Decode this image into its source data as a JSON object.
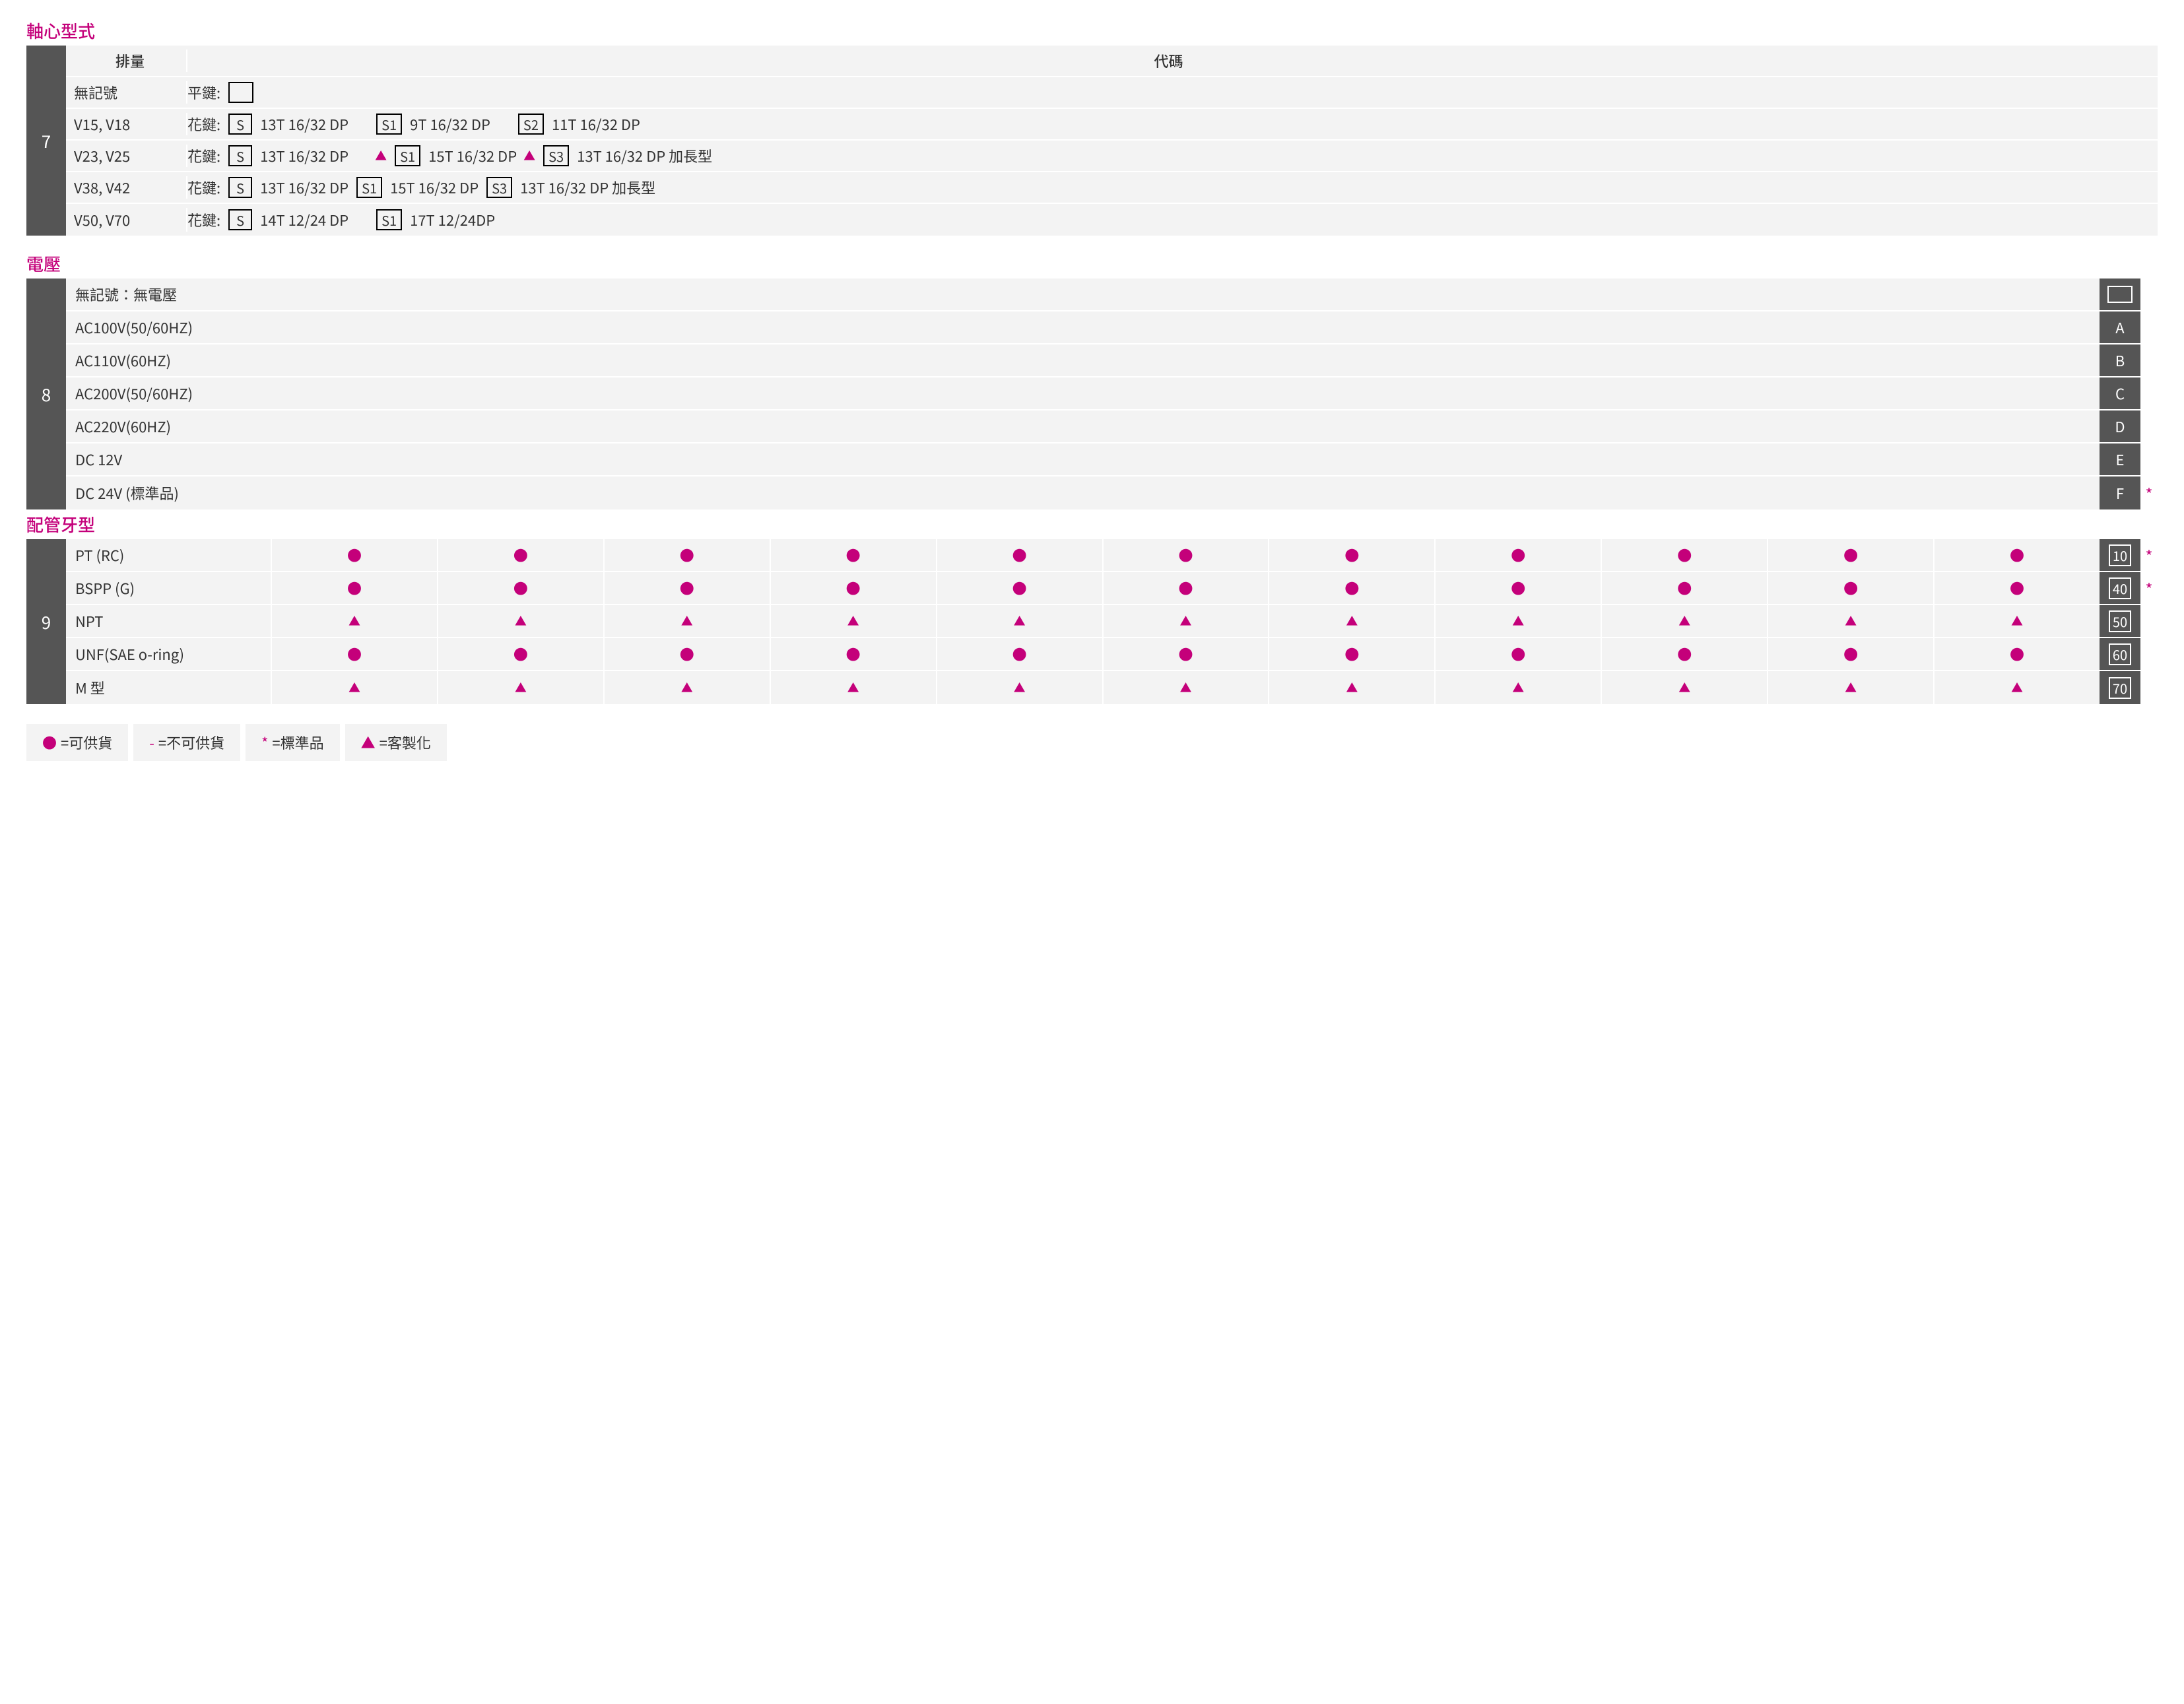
{
  "section7": {
    "title": "軸心型式",
    "num": "7",
    "header_left": "排量",
    "header_right": "代碼",
    "rows": [
      {
        "left": "無記號",
        "prefix": "平鍵:",
        "items": [
          {
            "type": "box",
            "text": ""
          }
        ]
      },
      {
        "left": "V15, V18",
        "prefix": "花鍵:",
        "items": [
          {
            "type": "box",
            "text": "S"
          },
          {
            "type": "text",
            "text": "13T 16/32 DP"
          },
          {
            "type": "gap"
          },
          {
            "type": "box",
            "text": "S1"
          },
          {
            "type": "text",
            "text": "9T 16/32 DP"
          },
          {
            "type": "gap"
          },
          {
            "type": "box",
            "text": "S2"
          },
          {
            "type": "text",
            "text": "11T 16/32 DP"
          }
        ]
      },
      {
        "left": "V23, V25",
        "prefix": "花鍵:",
        "items": [
          {
            "type": "box",
            "text": "S"
          },
          {
            "type": "text",
            "text": "13T 16/32 DP"
          },
          {
            "type": "gap"
          },
          {
            "type": "tri"
          },
          {
            "type": "box",
            "text": "S1"
          },
          {
            "type": "text",
            "text": "15T 16/32 DP"
          },
          {
            "type": "tri"
          },
          {
            "type": "box",
            "text": "S3"
          },
          {
            "type": "text",
            "text": "13T 16/32 DP 加長型"
          }
        ]
      },
      {
        "left": "V38, V42",
        "prefix": "花鍵:",
        "items": [
          {
            "type": "box",
            "text": "S"
          },
          {
            "type": "text",
            "text": "13T 16/32 DP"
          },
          {
            "type": "box",
            "text": "S1"
          },
          {
            "type": "text",
            "text": "15T 16/32 DP"
          },
          {
            "type": "box",
            "text": "S3"
          },
          {
            "type": "text",
            "text": "13T 16/32 DP 加長型"
          }
        ]
      },
      {
        "left": "V50, V70",
        "prefix": "花鍵:",
        "items": [
          {
            "type": "box",
            "text": "S"
          },
          {
            "type": "text",
            "text": "14T 12/24 DP"
          },
          {
            "type": "gap"
          },
          {
            "type": "box",
            "text": "S1"
          },
          {
            "type": "text",
            "text": "17T 12/24DP"
          }
        ]
      }
    ]
  },
  "section8": {
    "title": "電壓",
    "num": "8",
    "rows": [
      {
        "label": "無記號：無電壓",
        "code": "",
        "star": false,
        "empty_box": true
      },
      {
        "label": "AC100V(50/60HZ)",
        "code": "A",
        "star": false
      },
      {
        "label": "AC110V(60HZ)",
        "code": "B",
        "star": false
      },
      {
        "label": "AC200V(50/60HZ)",
        "code": "C",
        "star": false
      },
      {
        "label": "AC220V(60HZ)",
        "code": "D",
        "star": false
      },
      {
        "label": "DC 12V",
        "code": "E",
        "star": false
      },
      {
        "label": "DC 24V (標準品)",
        "code": "F",
        "star": true
      }
    ]
  },
  "section9": {
    "title": "配管牙型",
    "num": "9",
    "cols": 11,
    "rows": [
      {
        "label": "PT (RC)",
        "sym": "circ",
        "code": "10",
        "star": true
      },
      {
        "label": "BSPP (G)",
        "sym": "circ",
        "code": "40",
        "star": true
      },
      {
        "label": "NPT",
        "sym": "tri",
        "code": "50",
        "star": false
      },
      {
        "label": "UNF(SAE o-ring)",
        "sym": "circ",
        "code": "60",
        "star": false
      },
      {
        "label": "M 型",
        "sym": "tri",
        "code": "70",
        "star": false
      }
    ]
  },
  "legend": [
    {
      "sym": "●",
      "text": "=可供貨",
      "cls": "circ"
    },
    {
      "sym": "-",
      "text": "=不可供貨",
      "cls": "circ"
    },
    {
      "sym": "*",
      "text": "=標準品",
      "cls": "circ"
    },
    {
      "sym": "▲",
      "text": "=客製化",
      "cls": "tri"
    }
  ]
}
